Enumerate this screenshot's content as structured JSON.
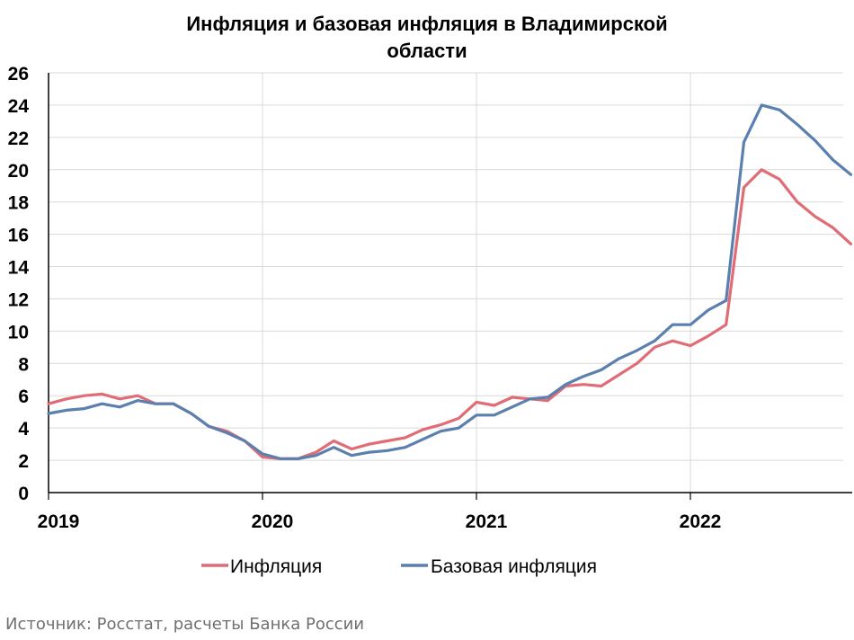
{
  "chart_data": {
    "type": "line",
    "title_line1": "Инфляция и базовая инфляция в Владимирской",
    "title_line2": "области",
    "xlabel": "",
    "ylabel": "",
    "ylim": [
      0,
      26
    ],
    "yticks": [
      0,
      2,
      4,
      6,
      8,
      10,
      12,
      14,
      16,
      18,
      20,
      22,
      24,
      26
    ],
    "xticks": [
      "2019",
      "2020",
      "2021",
      "2022"
    ],
    "grid": true,
    "legend_position": "bottom",
    "x": [
      "2019-01",
      "2019-02",
      "2019-03",
      "2019-04",
      "2019-05",
      "2019-06",
      "2019-07",
      "2019-08",
      "2019-09",
      "2019-10",
      "2019-11",
      "2019-12",
      "2020-01",
      "2020-02",
      "2020-03",
      "2020-04",
      "2020-05",
      "2020-06",
      "2020-07",
      "2020-08",
      "2020-09",
      "2020-10",
      "2020-11",
      "2020-12",
      "2021-01",
      "2021-02",
      "2021-03",
      "2021-04",
      "2021-05",
      "2021-06",
      "2021-07",
      "2021-08",
      "2021-09",
      "2021-10",
      "2021-11",
      "2021-12",
      "2022-01",
      "2022-02",
      "2022-03",
      "2022-04",
      "2022-05",
      "2022-06",
      "2022-07",
      "2022-08",
      "2022-09",
      "2022-10"
    ],
    "series": [
      {
        "name": "Инфляция",
        "color": "#e06c75",
        "values": [
          5.5,
          5.8,
          6.0,
          6.1,
          5.8,
          6.0,
          5.5,
          5.5,
          4.9,
          4.1,
          3.8,
          3.2,
          2.2,
          2.1,
          2.1,
          2.5,
          3.2,
          2.7,
          3.0,
          3.2,
          3.4,
          3.9,
          4.2,
          4.6,
          5.6,
          5.4,
          5.9,
          5.8,
          5.7,
          6.6,
          6.7,
          6.6,
          7.3,
          8.0,
          9.0,
          9.4,
          9.1,
          9.7,
          10.4,
          18.9,
          20.0,
          19.4,
          18.0,
          17.1,
          16.4,
          15.4
        ]
      },
      {
        "name": "Базовая инфляция",
        "color": "#5b7fae",
        "values": [
          4.9,
          5.1,
          5.2,
          5.5,
          5.3,
          5.7,
          5.5,
          5.5,
          4.9,
          4.1,
          3.7,
          3.2,
          2.4,
          2.1,
          2.1,
          2.3,
          2.8,
          2.3,
          2.5,
          2.6,
          2.8,
          3.3,
          3.8,
          4.0,
          4.8,
          4.8,
          5.3,
          5.8,
          5.9,
          6.7,
          7.2,
          7.6,
          8.3,
          8.8,
          9.4,
          10.4,
          10.4,
          11.3,
          11.9,
          21.7,
          24.0,
          23.7,
          22.8,
          21.8,
          20.6,
          19.7
        ]
      }
    ]
  },
  "source_text": "Источник: Росстат, расчеты Банка России"
}
